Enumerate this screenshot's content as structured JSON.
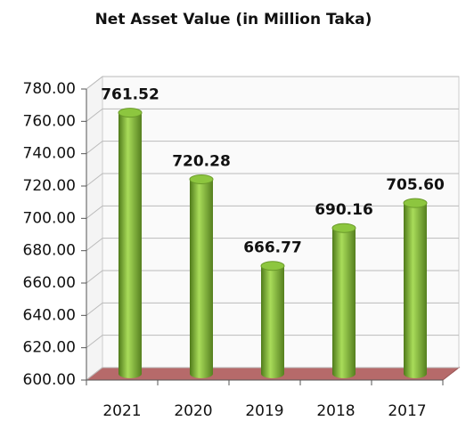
{
  "chart_data": {
    "type": "bar",
    "title": "Net Asset Value (in Million Taka)",
    "categories": [
      "2021",
      "2020",
      "2019",
      "2018",
      "2017"
    ],
    "values": [
      761.52,
      720.28,
      666.77,
      690.16,
      705.6
    ],
    "value_labels": [
      "761.52",
      "720.28",
      "666.77",
      "690.16",
      "705.60"
    ],
    "color": "#8dc63f",
    "ylim": [
      600,
      780
    ],
    "yticks": [
      {
        "value": 600,
        "label": "600.00"
      },
      {
        "value": 620,
        "label": "620.00"
      },
      {
        "value": 640,
        "label": "640.00"
      },
      {
        "value": 660,
        "label": "660.00"
      },
      {
        "value": 680,
        "label": "680.00"
      },
      {
        "value": 700,
        "label": "700.00"
      },
      {
        "value": 720,
        "label": "720.00"
      },
      {
        "value": 740,
        "label": "740.00"
      },
      {
        "value": 760,
        "label": "760.00"
      },
      {
        "value": 780,
        "label": "780.00"
      }
    ],
    "grid": true
  }
}
